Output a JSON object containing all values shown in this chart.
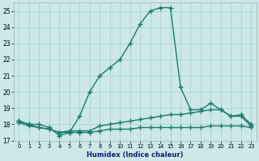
{
  "xlabel": "Humidex (Indice chaleur)",
  "x_values": [
    0,
    1,
    2,
    3,
    4,
    5,
    6,
    7,
    8,
    9,
    10,
    11,
    12,
    13,
    14,
    15,
    16,
    17,
    18,
    19,
    20,
    21,
    22,
    23
  ],
  "line1_y": [
    18.2,
    18.0,
    18.0,
    17.8,
    17.3,
    17.5,
    18.5,
    20.0,
    21.0,
    21.5,
    22.0,
    23.0,
    24.2,
    25.0,
    25.2,
    25.2,
    20.3,
    18.9,
    18.9,
    19.3,
    18.9,
    18.5,
    18.6,
    18.0
  ],
  "line2_y": [
    18.2,
    18.0,
    17.8,
    17.7,
    17.5,
    17.6,
    17.6,
    17.6,
    17.9,
    18.0,
    18.1,
    18.2,
    18.3,
    18.4,
    18.5,
    18.6,
    18.6,
    18.7,
    18.8,
    18.9,
    18.9,
    18.5,
    18.5,
    17.9
  ],
  "line3_y": [
    18.1,
    17.9,
    17.8,
    17.7,
    17.5,
    17.5,
    17.5,
    17.5,
    17.6,
    17.7,
    17.7,
    17.7,
    17.8,
    17.8,
    17.8,
    17.8,
    17.8,
    17.8,
    17.8,
    17.9,
    17.9,
    17.9,
    17.9,
    17.8
  ],
  "line_color": "#1a7a6e",
  "bg_color": "#cce8e8",
  "grid_color": "#aacccc",
  "ylim": [
    17.0,
    25.5
  ],
  "yticks": [
    17,
    18,
    19,
    20,
    21,
    22,
    23,
    24,
    25
  ],
  "marker": "+",
  "marker_size": 4,
  "linewidth": 1.0
}
